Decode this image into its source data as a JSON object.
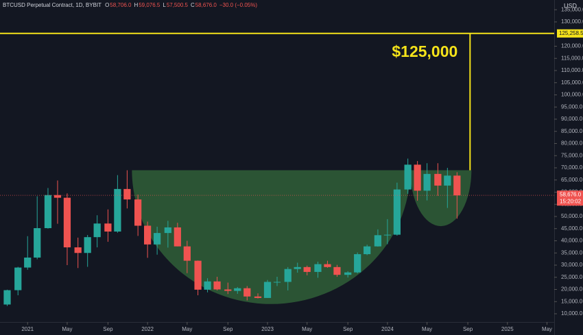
{
  "chart_data": {
    "type": "candlestick",
    "title": "BTCUSD Perpetual Contract, 1D, BYBIT",
    "ohlc_header": [
      {
        "key": "O",
        "value": "58,706.0"
      },
      {
        "key": "H",
        "value": "59,076.5"
      },
      {
        "key": "L",
        "value": "57,500.5"
      },
      {
        "key": "C",
        "value": "58,676.0"
      }
    ],
    "change": "−30.0 (−0.05%)",
    "currency": "USD",
    "up_color": "#26a69a",
    "down_color": "#ef5350",
    "x": [
      2020.83,
      2020.92,
      2021.0,
      2021.08,
      2021.17,
      2021.25,
      2021.33,
      2021.42,
      2021.5,
      2021.58,
      2021.67,
      2021.75,
      2021.83,
      2021.92,
      2022.0,
      2022.08,
      2022.17,
      2022.25,
      2022.33,
      2022.42,
      2022.5,
      2022.58,
      2022.67,
      2022.75,
      2022.83,
      2022.92,
      2023.0,
      2023.08,
      2023.17,
      2023.25,
      2023.33,
      2023.42,
      2023.5,
      2023.58,
      2023.67,
      2023.75,
      2023.83,
      2023.92,
      2024.0,
      2024.08,
      2024.17,
      2024.25,
      2024.33,
      2024.42,
      2024.5,
      2024.58
    ],
    "open": [
      13800,
      19700,
      29000,
      33100,
      45200,
      58800,
      57700,
      37300,
      35000,
      41500,
      47100,
      43800,
      61300,
      57000,
      46200,
      38500,
      43200,
      45500,
      37700,
      31800,
      19900,
      23300,
      20000,
      19400,
      20500,
      17100,
      16500,
      23100,
      23100,
      28400,
      29200,
      27200,
      30400,
      29200,
      26000,
      27000,
      34500,
      37700,
      42300,
      42500,
      61100,
      71300,
      60600,
      67500,
      62700,
      66800
    ],
    "high": [
      19900,
      29300,
      41900,
      58300,
      61700,
      64800,
      59500,
      41300,
      42400,
      50500,
      52900,
      67000,
      69000,
      59000,
      47900,
      45800,
      48200,
      47400,
      40000,
      31900,
      24600,
      25200,
      22800,
      21000,
      21400,
      18400,
      23900,
      25200,
      29200,
      31000,
      29800,
      31400,
      31800,
      30100,
      27500,
      35200,
      38400,
      44700,
      48900,
      63900,
      73800,
      72800,
      71900,
      71900,
      70000,
      68200
    ],
    "low": [
      13200,
      17600,
      28100,
      32400,
      45000,
      47000,
      30000,
      28800,
      29300,
      37300,
      39600,
      43300,
      53300,
      42000,
      33000,
      34300,
      37200,
      37700,
      26700,
      17600,
      18800,
      19600,
      18100,
      18200,
      15500,
      16300,
      16500,
      21400,
      19600,
      26900,
      25800,
      24800,
      28900,
      25200,
      24900,
      26600,
      34100,
      37600,
      38600,
      42100,
      59300,
      56500,
      56600,
      58500,
      53500,
      49100
    ],
    "close": [
      19700,
      29000,
      33100,
      45200,
      58800,
      57700,
      37300,
      35000,
      41500,
      47100,
      43800,
      61300,
      57000,
      46200,
      38500,
      43200,
      45500,
      37700,
      31800,
      19900,
      23300,
      20000,
      19400,
      20500,
      17100,
      16500,
      23100,
      23100,
      28400,
      29200,
      27200,
      30400,
      29200,
      26000,
      27000,
      34500,
      37700,
      42300,
      42500,
      61100,
      71300,
      60600,
      67500,
      62700,
      66800,
      58676
    ],
    "xlim": [
      2020.77,
      2025.39
    ],
    "ylim": [
      6620,
      139000
    ],
    "grid": false,
    "xticks": [
      2021,
      {
        "value": 2021.33,
        "label": "May"
      },
      {
        "value": 2021.67,
        "label": "Sep"
      },
      2022,
      {
        "value": 2022.33,
        "label": "May"
      },
      {
        "value": 2022.67,
        "label": "Sep"
      },
      2023,
      {
        "value": 2023.33,
        "label": "May"
      },
      {
        "value": 2023.67,
        "label": "Sep"
      },
      2024,
      {
        "value": 2024.33,
        "label": "May"
      },
      {
        "value": 2024.67,
        "label": "Sep"
      },
      2025,
      {
        "value": 2025.33,
        "label": "May"
      }
    ],
    "yticks": [
      {
        "value": 10000,
        "label": "10,000.0"
      },
      {
        "value": 15000,
        "label": "15,000.0"
      },
      {
        "value": 20000,
        "label": "20,000.0"
      },
      {
        "value": 25000,
        "label": "25,000.0"
      },
      {
        "value": 30000,
        "label": "30,000.0"
      },
      {
        "value": 35000,
        "label": "35,000.0"
      },
      {
        "value": 40000,
        "label": "40,000.0"
      },
      {
        "value": 45000,
        "label": "45,000.0"
      },
      {
        "value": 50000,
        "label": "50,000.0"
      },
      {
        "value": 55000,
        "label": "55,000.0"
      },
      {
        "value": 60000,
        "label": "60,000.0"
      },
      {
        "value": 65000,
        "label": "65,000.0"
      },
      {
        "value": 70000,
        "label": "70,000.0"
      },
      {
        "value": 75000,
        "label": "75,000.0"
      },
      {
        "value": 80000,
        "label": "80,000.0"
      },
      {
        "value": 85000,
        "label": "85,000.0"
      },
      {
        "value": 90000,
        "label": "90,000.0"
      },
      {
        "value": 95000,
        "label": "95,000.0"
      },
      {
        "value": 100000,
        "label": "100,000.0"
      },
      {
        "value": 105000,
        "label": "105,000.0"
      },
      {
        "value": 110000,
        "label": "110,000.0"
      },
      {
        "value": 115000,
        "label": "115,000.0"
      },
      {
        "value": 120000,
        "label": "120,000.0"
      },
      {
        "value": 130000,
        "label": "130,000.0"
      },
      {
        "value": 135000,
        "label": "135,000.0"
      }
    ],
    "last_price": {
      "value": 58676,
      "label": "58,676.0"
    },
    "countdown": "15:20:02",
    "target": {
      "value": 125258.5,
      "label": "125,258.5"
    },
    "annotation": "$125,000",
    "pattern": {
      "start": 2021.87,
      "end": 2024.19,
      "rim": 69000,
      "bottom": 14000,
      "handle_end": 2024.7,
      "handle_bottom": 46000,
      "color": "#2e5a36"
    },
    "target_color": "#f5e31a"
  }
}
